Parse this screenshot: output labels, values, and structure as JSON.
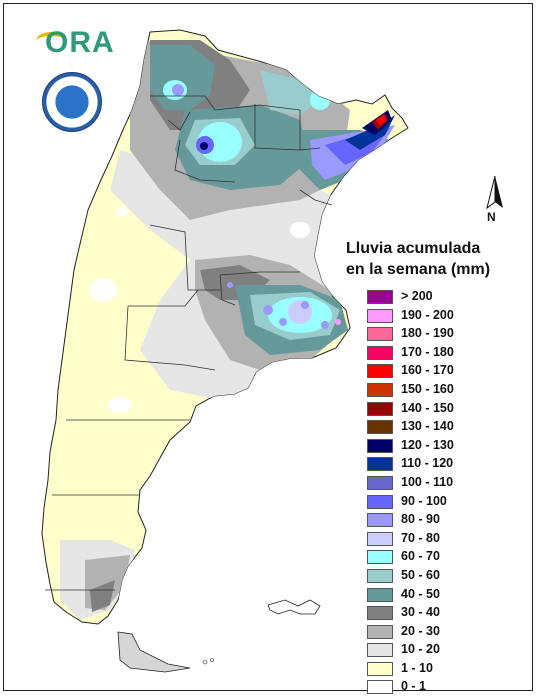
{
  "map": {
    "title_line1": "Lluvia acumulada",
    "title_line2": "en la semana (mm)",
    "north_label": "N",
    "logo_text": "ORA",
    "logo_color": "#2f9a7a"
  },
  "legend": [
    {
      "label": "> 200",
      "color": "#990099"
    },
    {
      "label": "190 - 200",
      "color": "#ff99ff"
    },
    {
      "label": "180 - 190",
      "color": "#ff6699"
    },
    {
      "label": "170 - 180",
      "color": "#ff0066"
    },
    {
      "label": "160 - 170",
      "color": "#ff0000"
    },
    {
      "label": "150 - 160",
      "color": "#cc3300"
    },
    {
      "label": "140 - 150",
      "color": "#990000"
    },
    {
      "label": "130 - 140",
      "color": "#663300"
    },
    {
      "label": "120 - 130",
      "color": "#000066"
    },
    {
      "label": "110 - 120",
      "color": "#003399"
    },
    {
      "label": "100 - 110",
      "color": "#6666cc"
    },
    {
      "label": "90 - 100",
      "color": "#6666ff"
    },
    {
      "label": "80 - 90",
      "color": "#9999ff"
    },
    {
      "label": "70 - 80",
      "color": "#ccccff"
    },
    {
      "label": "60 - 70",
      "color": "#99ffff"
    },
    {
      "label": "50 - 60",
      "color": "#99cccc"
    },
    {
      "label": "40 - 50",
      "color": "#669999"
    },
    {
      "label": "30 - 40",
      "color": "#808080"
    },
    {
      "label": "20 - 30",
      "color": "#b2b2b2"
    },
    {
      "label": "10 - 20",
      "color": "#e6e6e6"
    },
    {
      "label": "1 - 10",
      "color": "#ffffcc"
    },
    {
      "label": "0 - 1",
      "color": "#ffffff"
    }
  ]
}
